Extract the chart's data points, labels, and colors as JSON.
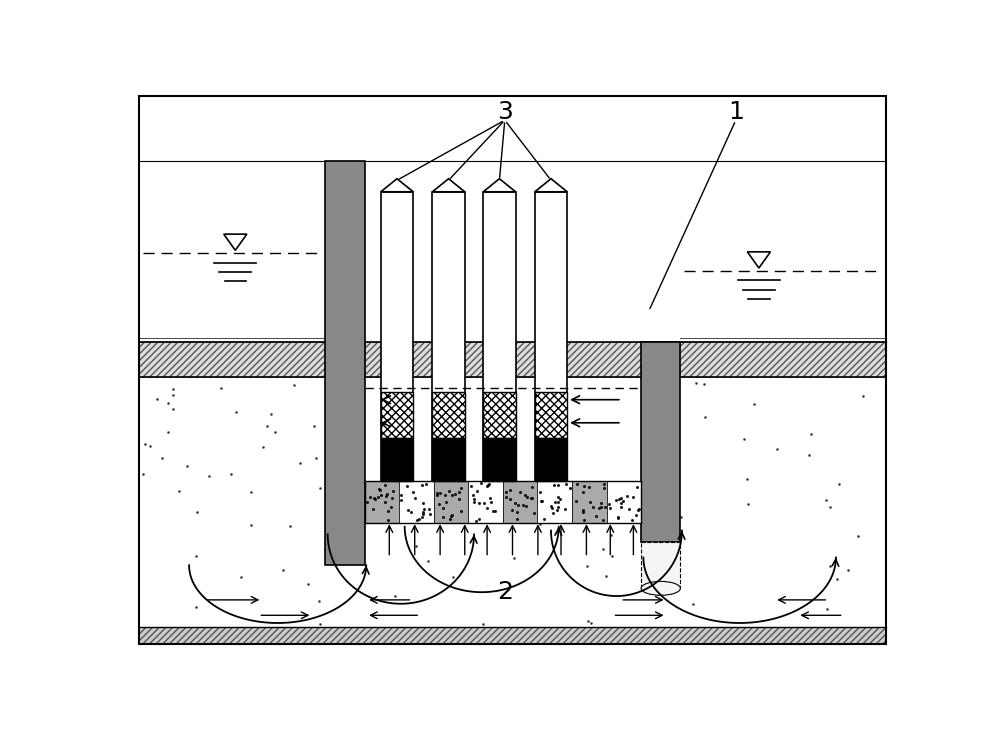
{
  "fig_width": 10.0,
  "fig_height": 7.32,
  "bg_color": "#ffffff",
  "wall_gray": "#888888",
  "wall_gray2": "#aaaaaa",
  "hatch_gray": "#cccccc",
  "label1": "1",
  "label2": "2",
  "label3": "3"
}
